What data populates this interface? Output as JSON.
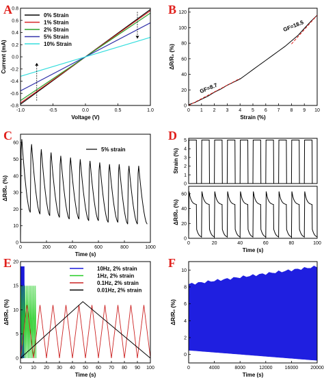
{
  "chart_data": [
    {
      "panel": "A",
      "type": "line",
      "xlabel": "Voltage (V)",
      "ylabel": "Current (mA)",
      "xlim": [
        -1.0,
        1.0
      ],
      "ylim": [
        -0.8,
        0.8
      ],
      "xticks": [
        "-1.0",
        "-0.5",
        "0.0",
        "0.5",
        "1.0"
      ],
      "yticks": [
        "-0.8",
        "-0.6",
        "-0.4",
        "-0.2",
        "0.0",
        "0.2",
        "0.4",
        "0.6",
        "0.8"
      ],
      "legend_position": "top-left",
      "series": [
        {
          "name": "0%   Strain",
          "color": "#000000",
          "x": [
            -1.0,
            1.0
          ],
          "y": [
            -0.78,
            0.78
          ]
        },
        {
          "name": "1%   Strain",
          "color": "#d62728",
          "x": [
            -1.0,
            1.0
          ],
          "y": [
            -0.76,
            0.76
          ]
        },
        {
          "name": "2%   Strain",
          "color": "#2ca02c",
          "x": [
            -1.0,
            1.0
          ],
          "y": [
            -0.72,
            0.72
          ]
        },
        {
          "name": "5%   Strain",
          "color": "#3333aa",
          "x": [
            -1.0,
            1.0
          ],
          "y": [
            -0.56,
            0.56
          ]
        },
        {
          "name": "10%  Strain",
          "color": "#33dddd",
          "x": [
            -1.0,
            1.0
          ],
          "y": [
            -0.32,
            0.32
          ]
        }
      ]
    },
    {
      "panel": "B",
      "type": "line",
      "xlabel": "Strain (%)",
      "ylabel": "ΔR/R₀ (%)",
      "xlim": [
        0,
        10
      ],
      "ylim": [
        0,
        125
      ],
      "xticks": [
        "0",
        "1",
        "2",
        "3",
        "4",
        "5",
        "6",
        "7",
        "8",
        "9",
        "10"
      ],
      "yticks": [
        "0",
        "20",
        "40",
        "60",
        "80",
        "100",
        "120"
      ],
      "annotations": [
        "GF=8.7",
        "GF=18.5"
      ],
      "series": [
        {
          "name": "",
          "color": "#000000",
          "x": [
            0,
            0.5,
            1,
            1.5,
            2,
            2.5,
            3,
            3.5,
            4,
            4.5,
            5,
            5.5,
            6,
            6.5,
            7,
            7.5,
            8,
            8.5,
            9,
            9.5,
            10
          ],
          "y": [
            1,
            4,
            8,
            12,
            17,
            21,
            26,
            30,
            34,
            40,
            46,
            52,
            58,
            64,
            70,
            76,
            83,
            90,
            99,
            108,
            116
          ]
        },
        {
          "name": "",
          "color": "#e0201c",
          "dashed": true,
          "x": [
            0,
            4
          ],
          "y": [
            0,
            34.8
          ]
        },
        {
          "name": "",
          "color": "#e0201c",
          "dashed": true,
          "x": [
            8,
            10
          ],
          "y": [
            79,
            116
          ]
        }
      ]
    },
    {
      "panel": "C",
      "type": "line",
      "xlabel": "Time (s)",
      "ylabel": "ΔR/R₀ (%)",
      "xlim": [
        0,
        1000
      ],
      "ylim": [
        0,
        65
      ],
      "xticks": [
        "0",
        "200",
        "400",
        "600",
        "800",
        "1000"
      ],
      "yticks": [
        "0",
        "10",
        "20",
        "30",
        "40",
        "50",
        "60"
      ],
      "legend_position": "top-right",
      "series": [
        {
          "name": "5% strain",
          "color": "#000000",
          "cycles": 13,
          "period": 75,
          "peaks": [
            62,
            59,
            56,
            54,
            52,
            51,
            50,
            49,
            48,
            47,
            47,
            46,
            46
          ],
          "troughs": [
            0,
            18,
            17,
            16,
            15,
            14,
            14,
            13,
            13,
            12,
            12,
            11,
            11
          ]
        }
      ]
    },
    {
      "panel": "D",
      "type": "line",
      "xlabel": "Time (s)",
      "xlim": [
        0,
        100
      ],
      "xticks": [
        "0",
        "20",
        "40",
        "60",
        "80",
        "100"
      ],
      "subplots": [
        {
          "ylabel": "Strain (%)",
          "ylim": [
            0,
            5.2
          ],
          "yticks": [
            "0",
            "1",
            "2",
            "3",
            "4",
            "5"
          ],
          "series": [
            {
              "name": "",
              "color": "#000000",
              "square_wave": true,
              "high": 5,
              "low": 0,
              "cycles": 10,
              "period": 10
            }
          ]
        },
        {
          "ylabel": "ΔR/R₀ (%)",
          "ylim": [
            0,
            70
          ],
          "yticks": [
            "0",
            "20",
            "40",
            "60"
          ],
          "series": [
            {
              "name": "",
              "color": "#000000",
              "peak": 63,
              "plateau": 45,
              "cycles": 10,
              "period": 10
            }
          ]
        }
      ]
    },
    {
      "panel": "E",
      "type": "line",
      "xlabel": "Time (s)",
      "ylabel": "ΔR/R₀ (%)",
      "xlim": [
        0,
        100
      ],
      "ylim": [
        -1,
        20
      ],
      "xticks": [
        "0",
        "10",
        "20",
        "30",
        "40",
        "50",
        "60",
        "70",
        "80",
        "90",
        "100"
      ],
      "yticks": [
        "0",
        "5",
        "10",
        "15",
        "20"
      ],
      "legend_position": "top-right",
      "series": [
        {
          "name": "10Hz,  2% strain",
          "color": "#1a1adb",
          "period": 0.1,
          "t_end": 3,
          "peak": 19
        },
        {
          "name": "1Hz,  2% strain",
          "color": "#22cc22",
          "period": 1,
          "t_end": 12,
          "peak": 15
        },
        {
          "name": "0.1Hz, 2% strain",
          "color": "#cc2222",
          "period": 10,
          "t_end": 100,
          "peak": 11
        },
        {
          "name": "0.01Hz, 2% strain",
          "color": "#000000",
          "period": 100,
          "t_end": 100,
          "peak": 11.7
        }
      ]
    },
    {
      "panel": "F",
      "type": "area",
      "xlabel": "Time (s)",
      "ylabel": "ΔR/R₀ (%)",
      "xlim": [
        0,
        20000
      ],
      "ylim": [
        -1,
        11
      ],
      "xticks": [
        "0",
        "4000",
        "8000",
        "12000",
        "16000",
        "20000"
      ],
      "yticks": [
        "0",
        "2",
        "4",
        "6",
        "8",
        "10"
      ],
      "series": [
        {
          "name": "",
          "color": "#1f1fe0",
          "upper_start": 8.3,
          "upper_end": 10.4,
          "lower_start": 0.5,
          "lower_end": -0.7
        }
      ]
    }
  ]
}
